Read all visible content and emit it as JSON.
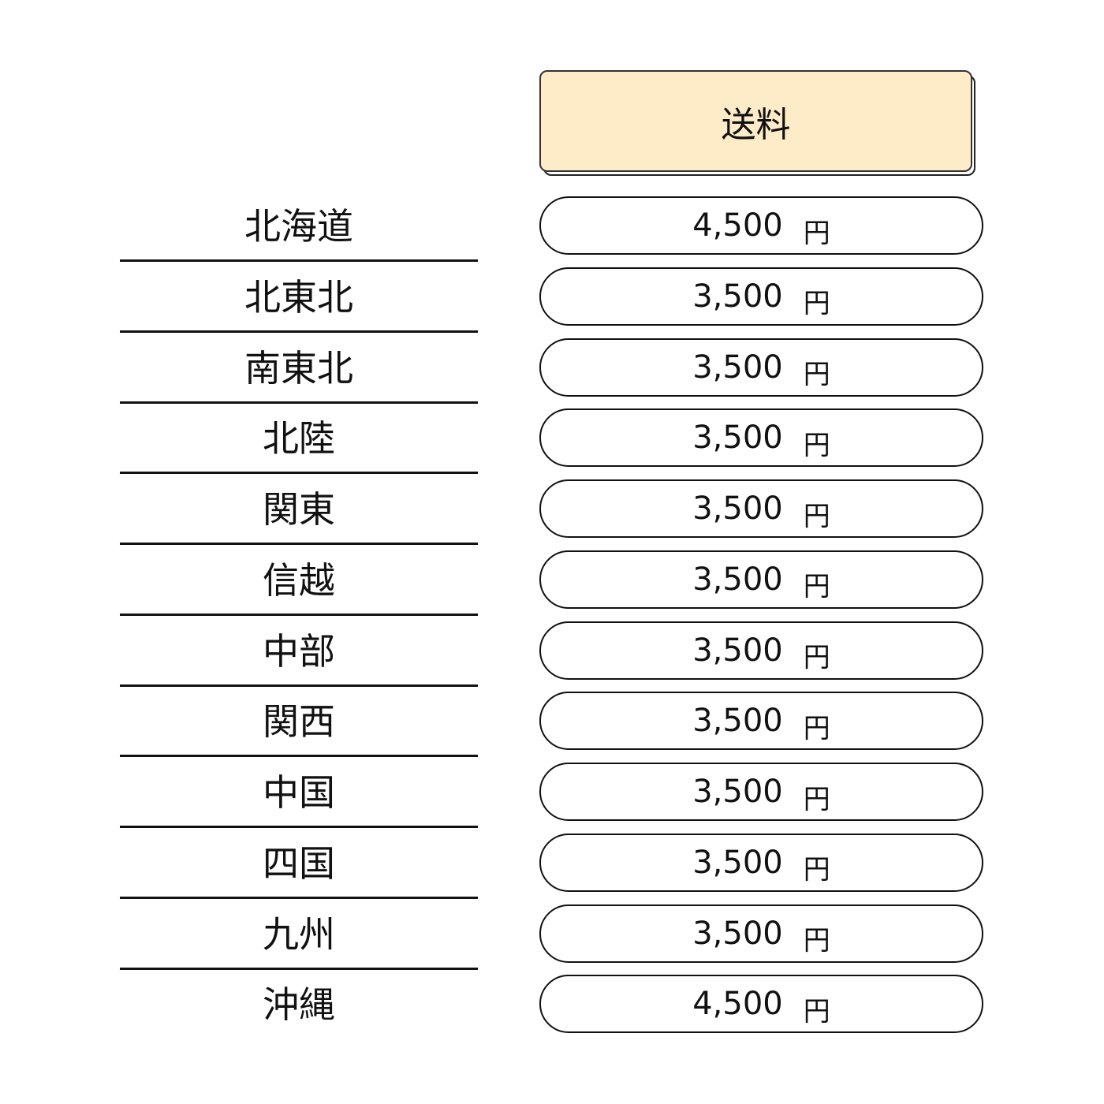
{
  "header": {
    "label": "送料",
    "color": "#feebc8"
  },
  "rows": [
    {
      "region": "北海道",
      "amount": "4,500",
      "unit": "円"
    },
    {
      "region": "北東北",
      "amount": "3,500",
      "unit": "円"
    },
    {
      "region": "南東北",
      "amount": "3,500",
      "unit": "円"
    },
    {
      "region": "北陸",
      "amount": "3,500",
      "unit": "円"
    },
    {
      "region": "関東",
      "amount": "3,500",
      "unit": "円"
    },
    {
      "region": "信越",
      "amount": "3,500",
      "unit": "円"
    },
    {
      "region": "中部",
      "amount": "3,500",
      "unit": "円"
    },
    {
      "region": "関西",
      "amount": "3,500",
      "unit": "円"
    },
    {
      "region": "中国",
      "amount": "3,500",
      "unit": "円"
    },
    {
      "region": "四国",
      "amount": "3,500",
      "unit": "円"
    },
    {
      "region": "九州",
      "amount": "3,500",
      "unit": "円"
    },
    {
      "region": "沖縄",
      "amount": "4,500",
      "unit": "円"
    }
  ]
}
